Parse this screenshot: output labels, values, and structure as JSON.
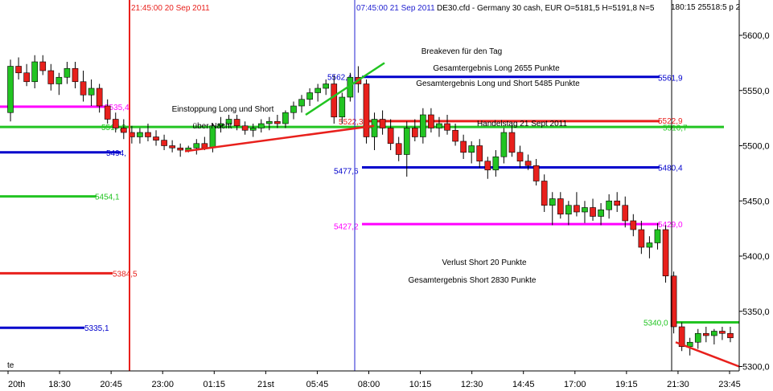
{
  "chart_data": {
    "type": "candlestick",
    "header": {
      "symbol_info": "DE30.cfd - Germany 30 cash, EUR O=5181,5 H=5191,8 N=5",
      "overlap_tail": "180:15 25518:5 p 2"
    },
    "y_axis": {
      "ylim": [
        5296,
        5632
      ],
      "ticks": [
        "5600,0",
        "5550,0",
        "5500,0",
        "5450,0",
        "5400,0",
        "5350,0",
        "5300,0"
      ],
      "tick_values": [
        5600,
        5550,
        5500,
        5450,
        5400,
        5350,
        5300
      ]
    },
    "x_axis": {
      "labels": [
        "20th",
        "18:30",
        "20:45",
        "23:00",
        "01:15",
        "21st",
        "05:45",
        "08:00",
        "10:15",
        "12:30",
        "14:45",
        "17:00",
        "19:15",
        "21:30",
        "23:45"
      ],
      "corner_label": "te"
    },
    "vertical_lines": [
      {
        "label": "21:45:00 20 Sep 2011",
        "color": "#e8201c",
        "at": 0.17
      },
      {
        "label": "07:45:00 21 Sep 2011",
        "color": "#2020d0",
        "at": 0.46
      },
      {
        "label": "",
        "color": "#000000",
        "at": 0.87
      }
    ],
    "levels": [
      {
        "label": "5535,4",
        "value": 5535.4,
        "color": "#ff00ff"
      },
      {
        "label": "5517,0",
        "value": 5517.0,
        "color": "#22c422"
      },
      {
        "label": "5494,",
        "value": 5494.0,
        "color": "#0000cc"
      },
      {
        "label": "5454,1",
        "value": 5454.1,
        "color": "#22c422"
      },
      {
        "label": "5384,5",
        "value": 5384.5,
        "color": "#e8201c"
      },
      {
        "label": "5335,1",
        "value": 5335.1,
        "color": "#0000cc"
      },
      {
        "label": "5562,4",
        "value": 5562.4,
        "color": "#0000cc"
      },
      {
        "label": "5561,9",
        "value": 5561.9,
        "color": "#0000cc"
      },
      {
        "label": "5522,3",
        "value": 5522.3,
        "color": "#e8201c"
      },
      {
        "label": "5522,9",
        "value": 5522.9,
        "color": "#e8201c"
      },
      {
        "label": "5516,7",
        "value": 5516.7,
        "color": "#22c422"
      },
      {
        "label": "5477,6",
        "value": 5477.6,
        "color": "#0000cc"
      },
      {
        "label": "5480,4",
        "value": 5480.4,
        "color": "#0000cc"
      },
      {
        "label": "5427,2",
        "value": 5427.2,
        "color": "#ff00ff"
      },
      {
        "label": "5429,0",
        "value": 5429.0,
        "color": "#ff00ff"
      },
      {
        "label": "5340,0",
        "value": 5340.0,
        "color": "#22c422"
      }
    ],
    "annotations": [
      "Einstoppung Long und Short",
      "über Nacht",
      "Breakeven für den Tag",
      "Gesamtergebnis Long 2655 Punkte",
      "Gesamtergebnis Long und Short 5485 Punkte",
      "Handelstag 21 Sept 2011",
      "Verlust Short 20 Punkte",
      "Gesamtergebnis Short 2830 Punkte"
    ],
    "colors": {
      "up": "#22c422",
      "down": "#e8201c",
      "blue": "#0000cc",
      "magenta": "#ff00ff"
    },
    "candles": [
      [
        5530,
        5578,
        5522,
        5572
      ],
      [
        5572,
        5580,
        5560,
        5566
      ],
      [
        5566,
        5574,
        5554,
        5558
      ],
      [
        5558,
        5582,
        5552,
        5576
      ],
      [
        5576,
        5582,
        5564,
        5568
      ],
      [
        5568,
        5574,
        5550,
        5556
      ],
      [
        5556,
        5566,
        5546,
        5562
      ],
      [
        5562,
        5576,
        5556,
        5570
      ],
      [
        5570,
        5576,
        5552,
        5558
      ],
      [
        5558,
        5568,
        5540,
        5546
      ],
      [
        5546,
        5560,
        5536,
        5552
      ],
      [
        5552,
        5556,
        5530,
        5536
      ],
      [
        5536,
        5542,
        5520,
        5524
      ],
      [
        5524,
        5530,
        5512,
        5516
      ],
      [
        5516,
        5524,
        5506,
        5512
      ],
      [
        5512,
        5518,
        5502,
        5508
      ],
      [
        5508,
        5516,
        5502,
        5512
      ],
      [
        5512,
        5520,
        5504,
        5508
      ],
      [
        5508,
        5514,
        5500,
        5505
      ],
      [
        5505,
        5510,
        5496,
        5500
      ],
      [
        5500,
        5505,
        5494,
        5498
      ],
      [
        5498,
        5502,
        5490,
        5496
      ],
      [
        5496,
        5500,
        5494,
        5498
      ],
      [
        5498,
        5506,
        5492,
        5502
      ],
      [
        5502,
        5508,
        5496,
        5498
      ],
      [
        5498,
        5520,
        5494,
        5518
      ],
      [
        5518,
        5526,
        5512,
        5520
      ],
      [
        5520,
        5528,
        5516,
        5524
      ],
      [
        5524,
        5528,
        5514,
        5518
      ],
      [
        5518,
        5522,
        5510,
        5514
      ],
      [
        5514,
        5520,
        5508,
        5516
      ],
      [
        5516,
        5524,
        5512,
        5520
      ],
      [
        5520,
        5526,
        5514,
        5522
      ],
      [
        5522,
        5528,
        5516,
        5520
      ],
      [
        5520,
        5532,
        5516,
        5530
      ],
      [
        5530,
        5540,
        5524,
        5536
      ],
      [
        5536,
        5546,
        5530,
        5542
      ],
      [
        5542,
        5552,
        5536,
        5548
      ],
      [
        5548,
        5556,
        5540,
        5552
      ],
      [
        5552,
        5560,
        5546,
        5556
      ],
      [
        5556,
        5564,
        5520,
        5526
      ],
      [
        5526,
        5548,
        5520,
        5544
      ],
      [
        5544,
        5566,
        5540,
        5562
      ],
      [
        5562,
        5572,
        5548,
        5556
      ],
      [
        5556,
        5560,
        5502,
        5508
      ],
      [
        5508,
        5530,
        5496,
        5524
      ],
      [
        5524,
        5532,
        5510,
        5516
      ],
      [
        5516,
        5524,
        5496,
        5502
      ],
      [
        5502,
        5508,
        5486,
        5492
      ],
      [
        5492,
        5522,
        5472,
        5516
      ],
      [
        5516,
        5524,
        5504,
        5508
      ],
      [
        5508,
        5534,
        5502,
        5528
      ],
      [
        5528,
        5534,
        5512,
        5516
      ],
      [
        5516,
        5526,
        5508,
        5520
      ],
      [
        5520,
        5528,
        5510,
        5514
      ],
      [
        5514,
        5520,
        5500,
        5504
      ],
      [
        5504,
        5510,
        5488,
        5494
      ],
      [
        5494,
        5504,
        5484,
        5500
      ],
      [
        5500,
        5506,
        5480,
        5486
      ],
      [
        5486,
        5490,
        5470,
        5478
      ],
      [
        5478,
        5496,
        5472,
        5490
      ],
      [
        5490,
        5516,
        5484,
        5512
      ],
      [
        5512,
        5518,
        5490,
        5494
      ],
      [
        5494,
        5500,
        5480,
        5486
      ],
      [
        5486,
        5492,
        5478,
        5482
      ],
      [
        5482,
        5488,
        5464,
        5468
      ],
      [
        5468,
        5474,
        5440,
        5446
      ],
      [
        5446,
        5458,
        5428,
        5452
      ],
      [
        5452,
        5458,
        5434,
        5438
      ],
      [
        5438,
        5450,
        5428,
        5446
      ],
      [
        5446,
        5458,
        5436,
        5440
      ],
      [
        5440,
        5450,
        5430,
        5444
      ],
      [
        5444,
        5452,
        5432,
        5436
      ],
      [
        5436,
        5448,
        5428,
        5442
      ],
      [
        5442,
        5456,
        5434,
        5450
      ],
      [
        5450,
        5458,
        5440,
        5446
      ],
      [
        5446,
        5454,
        5426,
        5432
      ],
      [
        5432,
        5438,
        5418,
        5424
      ],
      [
        5424,
        5432,
        5402,
        5408
      ],
      [
        5408,
        5418,
        5398,
        5412
      ],
      [
        5412,
        5430,
        5406,
        5424
      ],
      [
        5424,
        5428,
        5376,
        5382
      ],
      [
        5382,
        5386,
        5330,
        5336
      ],
      [
        5336,
        5340,
        5314,
        5318
      ],
      [
        5318,
        5326,
        5310,
        5322
      ],
      [
        5322,
        5334,
        5316,
        5330
      ],
      [
        5330,
        5336,
        5322,
        5328
      ],
      [
        5328,
        5334,
        5320,
        5332
      ],
      [
        5332,
        5336,
        5324,
        5330
      ],
      [
        5330,
        5336,
        5322,
        5326
      ]
    ]
  }
}
